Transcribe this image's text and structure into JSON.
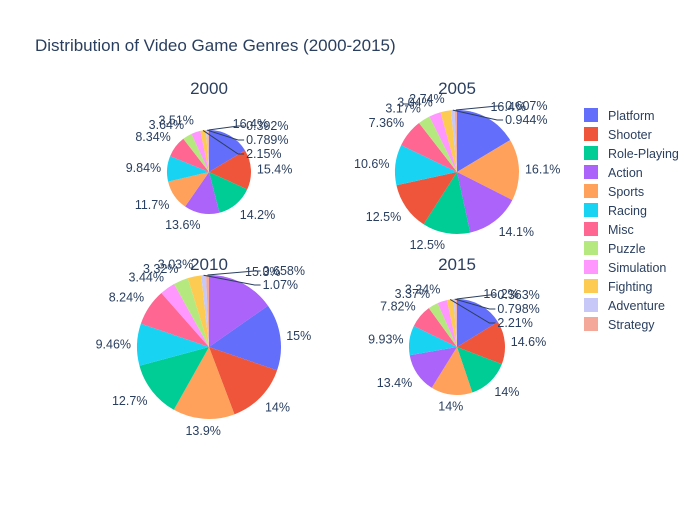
{
  "title": "Distribution of Video Game Genres (2000-2015)",
  "chart_data": {
    "type": "pie",
    "title": "Distribution of Video Game Genres (2000-2015)",
    "categories": [
      "Platform",
      "Shooter",
      "Role-Playing",
      "Action",
      "Sports",
      "Racing",
      "Misc",
      "Puzzle",
      "Simulation",
      "Fighting",
      "Adventure",
      "Strategy"
    ],
    "colors": {
      "Platform": "#636efa",
      "Shooter": "#ef553b",
      "Role-Playing": "#00cc96",
      "Action": "#ab63fa",
      "Sports": "#ffa15a",
      "Racing": "#19d3f3",
      "Misc": "#ff6692",
      "Puzzle": "#b6e880",
      "Simulation": "#ff97ff",
      "Fighting": "#fecb52",
      "Adventure": "#c8c8f8",
      "Strategy": "#f4a89a"
    },
    "legend_position": "right",
    "sort": "descending",
    "pies": [
      {
        "year": "2000",
        "slices": [
          {
            "label": "Platform",
            "value": 16.4
          },
          {
            "label": "Shooter",
            "value": 15.4
          },
          {
            "label": "Role-Playing",
            "value": 14.2
          },
          {
            "label": "Action",
            "value": 13.6
          },
          {
            "label": "Sports",
            "value": 11.7
          },
          {
            "label": "Racing",
            "value": 9.84
          },
          {
            "label": "Misc",
            "value": 8.34
          },
          {
            "label": "Puzzle",
            "value": 3.64
          },
          {
            "label": "Simulation",
            "value": 3.51
          },
          {
            "label": "Fighting",
            "value": 2.15
          },
          {
            "label": "Adventure",
            "value": 0.789
          },
          {
            "label": "Strategy",
            "value": 0.392
          }
        ]
      },
      {
        "year": "2005",
        "slices": [
          {
            "label": "Platform",
            "value": 16.4
          },
          {
            "label": "Sports",
            "value": 16.1
          },
          {
            "label": "Action",
            "value": 14.1
          },
          {
            "label": "Role-Playing",
            "value": 12.5
          },
          {
            "label": "Shooter",
            "value": 12.5
          },
          {
            "label": "Racing",
            "value": 10.6
          },
          {
            "label": "Misc",
            "value": 7.36
          },
          {
            "label": "Puzzle",
            "value": 3.17
          },
          {
            "label": "Simulation",
            "value": 3.04
          },
          {
            "label": "Fighting",
            "value": 2.74
          },
          {
            "label": "Adventure",
            "value": 0.944
          },
          {
            "label": "Strategy",
            "value": 0.607
          }
        ]
      },
      {
        "year": "2010",
        "slices": [
          {
            "label": "Action",
            "value": 15.3
          },
          {
            "label": "Platform",
            "value": 15
          },
          {
            "label": "Shooter",
            "value": 14
          },
          {
            "label": "Sports",
            "value": 13.9
          },
          {
            "label": "Role-Playing",
            "value": 12.7
          },
          {
            "label": "Racing",
            "value": 9.46
          },
          {
            "label": "Misc",
            "value": 8.24
          },
          {
            "label": "Simulation",
            "value": 3.44
          },
          {
            "label": "Puzzle",
            "value": 3.32
          },
          {
            "label": "Fighting",
            "value": 3.03
          },
          {
            "label": "Adventure",
            "value": 1.07
          },
          {
            "label": "Strategy",
            "value": 0.658
          }
        ]
      },
      {
        "year": "2015",
        "slices": [
          {
            "label": "Platform",
            "value": 16.2
          },
          {
            "label": "Shooter",
            "value": 14.6
          },
          {
            "label": "Role-Playing",
            "value": 14
          },
          {
            "label": "Sports",
            "value": 14
          },
          {
            "label": "Action",
            "value": 13.4
          },
          {
            "label": "Racing",
            "value": 9.93
          },
          {
            "label": "Misc",
            "value": 7.82
          },
          {
            "label": "Puzzle",
            "value": 3.37
          },
          {
            "label": "Simulation",
            "value": 3.24
          },
          {
            "label": "Fighting",
            "value": 2.21
          },
          {
            "label": "Adventure",
            "value": 0.798
          },
          {
            "label": "Strategy",
            "value": 0.363
          }
        ]
      }
    ]
  }
}
